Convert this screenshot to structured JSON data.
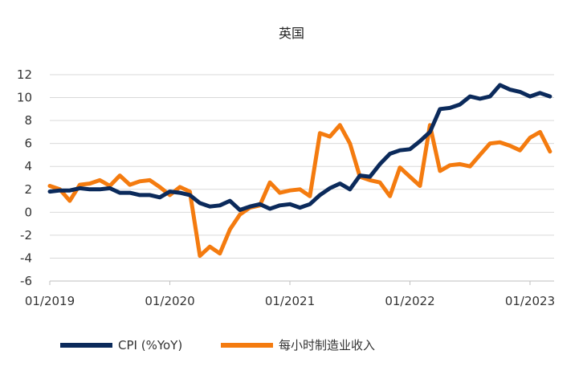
{
  "chart_data": {
    "type": "line",
    "title": "英国",
    "xlabel": "",
    "ylabel": "",
    "ylim": [
      -6,
      12
    ],
    "yticks": [
      12,
      10,
      8,
      6,
      4,
      2,
      0,
      -2,
      -4,
      -6
    ],
    "x_tick_labels": [
      "01/2019",
      "01/2020",
      "01/2021",
      "01/2022",
      "01/2023"
    ],
    "x_months": [
      "2019-01",
      "2019-02",
      "2019-03",
      "2019-04",
      "2019-05",
      "2019-06",
      "2019-07",
      "2019-08",
      "2019-09",
      "2019-10",
      "2019-11",
      "2019-12",
      "2020-01",
      "2020-02",
      "2020-03",
      "2020-04",
      "2020-05",
      "2020-06",
      "2020-07",
      "2020-08",
      "2020-09",
      "2020-10",
      "2020-11",
      "2020-12",
      "2021-01",
      "2021-02",
      "2021-03",
      "2021-04",
      "2021-05",
      "2021-06",
      "2021-07",
      "2021-08",
      "2021-09",
      "2021-10",
      "2021-11",
      "2021-12",
      "2022-01",
      "2022-02",
      "2022-03",
      "2022-04",
      "2022-05",
      "2022-06",
      "2022-07",
      "2022-08",
      "2022-09",
      "2022-10",
      "2022-11",
      "2022-12",
      "2023-01",
      "2023-02"
    ],
    "grid": true,
    "legend_position": "bottom",
    "series": [
      {
        "name": "CPI (%YoY)",
        "color": "#0b2a5b",
        "values": [
          1.8,
          1.9,
          1.9,
          2.1,
          2.0,
          2.0,
          2.1,
          1.7,
          1.7,
          1.5,
          1.5,
          1.3,
          1.8,
          1.7,
          1.5,
          0.8,
          0.5,
          0.6,
          1.0,
          0.2,
          0.5,
          0.7,
          0.3,
          0.6,
          0.7,
          0.4,
          0.7,
          1.5,
          2.1,
          2.5,
          2.0,
          3.2,
          3.1,
          4.2,
          5.1,
          5.4,
          5.5,
          6.2,
          7.0,
          9.0,
          9.1,
          9.4,
          10.1,
          9.9,
          10.1,
          11.1,
          10.7,
          10.5,
          10.1,
          10.4
        ]
      },
      {
        "name": "每小时制造业收入",
        "color": "#f47b0f",
        "values": [
          2.3,
          2.0,
          1.0,
          2.4,
          2.5,
          2.8,
          2.3,
          3.2,
          2.4,
          2.7,
          2.8,
          2.2,
          1.5,
          2.2,
          1.8,
          -3.8,
          -3.0,
          -3.6,
          -1.5,
          -0.2,
          0.4,
          0.6,
          2.6,
          1.7,
          1.9,
          2.0,
          1.4,
          6.9,
          6.6,
          7.6,
          6.0,
          3.1,
          2.8,
          2.6,
          1.4,
          3.9,
          3.1,
          2.3,
          7.6,
          3.6,
          4.1,
          4.2,
          4.0,
          5.0,
          6.0,
          6.1,
          5.8,
          5.4,
          6.5,
          7.0
        ]
      }
    ],
    "extra_points": {
      "CPI (%YoY)": 10.1,
      "每小时制造业收入": 5.3
    }
  }
}
